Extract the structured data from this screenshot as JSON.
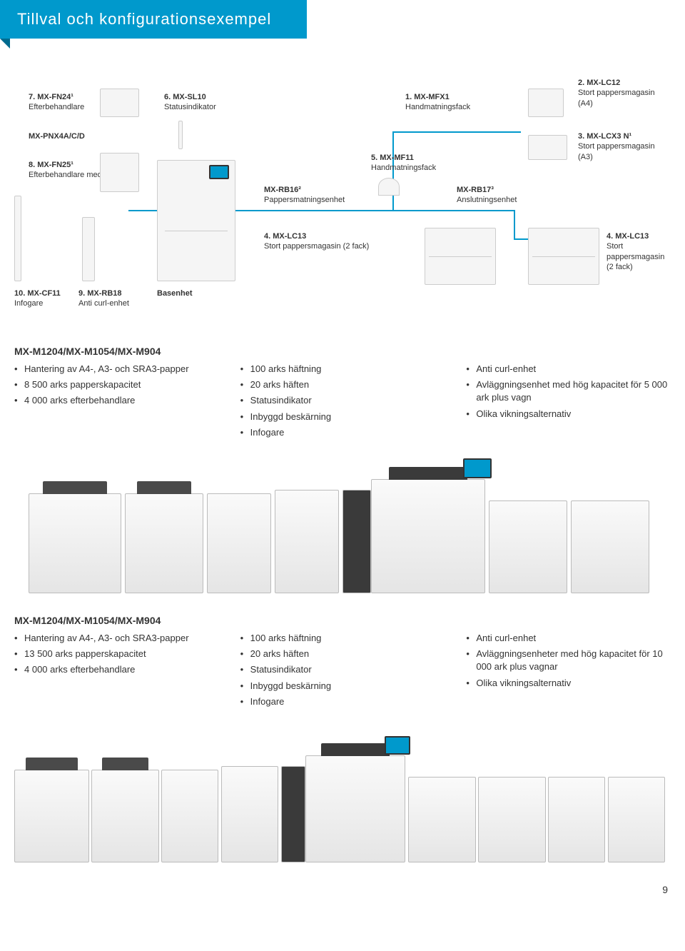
{
  "banner": "Tillval och konfigurationsexempel",
  "diagram": {
    "item1": {
      "code": "1. MX-MFX1",
      "desc": "Handmatningsfack"
    },
    "item2": {
      "code": "2. MX-LC12",
      "desc": "Stort pappersmagasin (A4)"
    },
    "item3": {
      "code": "3. MX-LCX3 N¹",
      "desc": "Stort pappersmagasin (A3)"
    },
    "item4a": {
      "code": "4. MX-LC13",
      "desc": "Stort pappersmagasin (2 fack)"
    },
    "item4b": {
      "code": "4. MX-LC13",
      "desc": "Stort pappersmagasin (2 fack)"
    },
    "item5": {
      "code": "5. MX-MF11",
      "desc": "Handmatningsfack"
    },
    "item6": {
      "code": "6. MX-SL10",
      "desc": "Statusindikator"
    },
    "item7": {
      "code": "7. MX-FN24¹",
      "desc": "Efterbehandlare"
    },
    "item8": {
      "code": "8. MX-FN25¹",
      "desc": "Efterbehandlare med sadelhäft"
    },
    "item9": {
      "code": "9. MX-RB18",
      "desc": "Anti curl-enhet"
    },
    "item10": {
      "code": "10. MX-CF11",
      "desc": "Infogare"
    },
    "rb16": {
      "code": "MX-RB16²",
      "desc": "Pappersmatningsenhet"
    },
    "rb17": {
      "code": "MX-RB17³",
      "desc": "Anslutningsenhet"
    },
    "pnx": "MX-PNX4A/C/D",
    "base": "Basenhet"
  },
  "spec1": {
    "title": "MX-M1204/MX-M1054/MX-M904",
    "col1": [
      "Hantering av A4-, A3- och SRA3-papper",
      "8 500 arks papperskapacitet",
      "4 000 arks efterbehandlare"
    ],
    "col2": [
      "100 arks häftning",
      "20 arks häften",
      "Statusindikator",
      "Inbyggd beskärning",
      "Infogare"
    ],
    "col3": [
      "Anti curl-enhet",
      "Avläggningsenhet med hög kapacitet för 5 000 ark plus vagn",
      "Olika vikningsalternativ"
    ]
  },
  "spec2": {
    "title": "MX-M1204/MX-M1054/MX-M904",
    "col1": [
      "Hantering av A4-, A3- och SRA3-papper",
      "13 500 arks papperskapacitet",
      "4 000 arks efterbehandlare"
    ],
    "col2": [
      "100 arks häftning",
      "20 arks häften",
      "Statusindikator",
      "Inbyggd beskärning",
      "Infogare"
    ],
    "col3": [
      "Anti curl-enhet",
      "Avläggningsenheter med hög kapacitet för 10 000 ark plus vagnar",
      "Olika vikningsalternativ"
    ]
  },
  "page": "9",
  "colors": {
    "accent": "#0099cc"
  }
}
